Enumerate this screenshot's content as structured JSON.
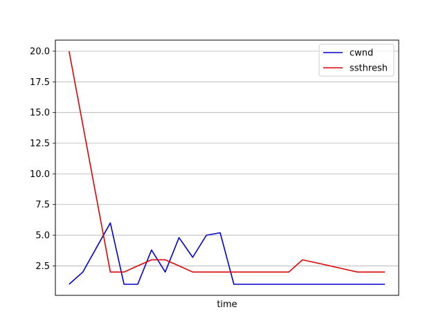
{
  "chart_data": {
    "type": "line",
    "title": "",
    "xlabel": "time",
    "ylabel": "",
    "x": [
      1,
      2,
      3,
      4,
      5,
      6,
      7,
      8,
      9,
      10,
      11,
      12,
      13,
      14,
      15,
      16,
      17,
      18,
      19,
      20,
      21,
      22,
      23,
      24
    ],
    "xlim": [
      0,
      25
    ],
    "ylim": [
      0.1,
      20.9
    ],
    "yticks": [
      2.5,
      5.0,
      7.5,
      10.0,
      12.5,
      15.0,
      17.5,
      20.0
    ],
    "ytick_labels": [
      "2.5",
      "5.0",
      "7.5",
      "10.0",
      "12.5",
      "15.0",
      "17.5",
      "20.0"
    ],
    "show_xticks": false,
    "grid": "y",
    "legend": "top-right",
    "series": [
      {
        "name": "cwnd",
        "color": "#0000cc",
        "values": [
          1,
          2,
          4,
          6,
          1,
          1,
          3.8,
          2,
          4.8,
          3.2,
          5,
          5.2,
          1,
          1,
          1,
          1,
          1,
          1,
          1,
          1,
          1,
          1,
          1,
          1
        ]
      },
      {
        "name": "ssthresh",
        "color": "#e00000",
        "values": [
          20,
          null,
          null,
          2,
          2,
          2.5,
          3,
          3,
          2.5,
          2,
          2,
          2,
          2,
          2,
          2,
          2,
          2,
          3,
          2.75,
          2.5,
          2.25,
          2,
          2,
          2
        ]
      }
    ]
  }
}
